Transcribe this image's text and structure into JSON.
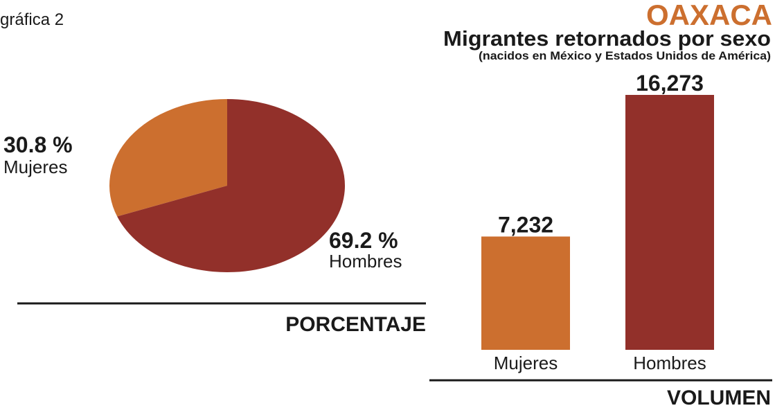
{
  "header": {
    "label": "gráfica 2",
    "region": "OAXACA",
    "title": "Migrantes retornados por sexo",
    "subtitle": "(nacidos en México y Estados Unidos de América)"
  },
  "chart_data": [
    {
      "type": "pie",
      "categories": [
        "Mujeres",
        "Hombres"
      ],
      "values": [
        30.8,
        69.2
      ],
      "value_labels": [
        "30.8 %",
        "69.2 %"
      ],
      "colors": [
        "#cc6f2f",
        "#92302a"
      ],
      "caption": "PORCENTAJE"
    },
    {
      "type": "bar",
      "categories": [
        "Mujeres",
        "Hombres"
      ],
      "values": [
        7232,
        16273
      ],
      "value_labels": [
        "7,232",
        "16,273"
      ],
      "colors": [
        "#cc6f2f",
        "#92302a"
      ],
      "caption": "VOLUMEN"
    }
  ]
}
